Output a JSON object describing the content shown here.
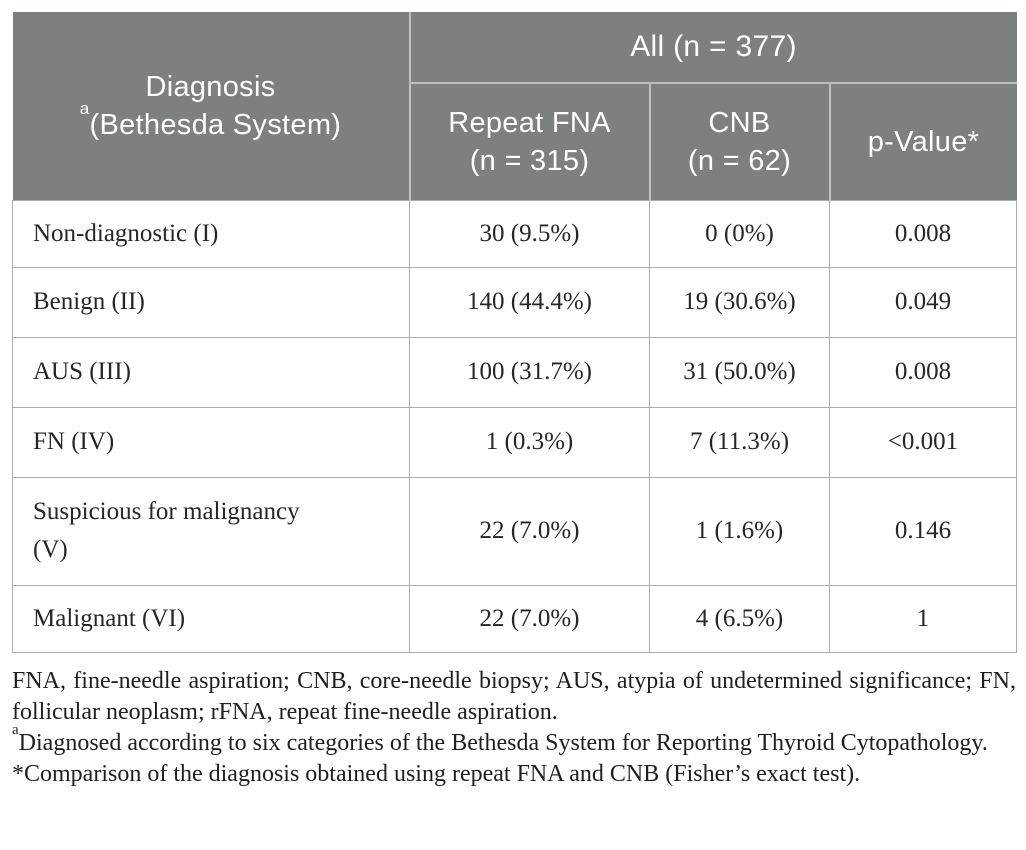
{
  "table": {
    "header": {
      "diagnosis_title": "Diagnosis",
      "diagnosis_sup": "a",
      "diagnosis_subtitle": "(Bethesda System)",
      "all_label": "All (n = 377)",
      "col_repeat_fna_line1": "Repeat FNA",
      "col_repeat_fna_line2": "(n = 315)",
      "col_cnb_line1": "CNB",
      "col_cnb_line2": "(n = 62)",
      "col_p_value": "p-Value*"
    },
    "rows": [
      {
        "label": "Non-diagnostic (I)",
        "repeat_fna": "30 (9.5%)",
        "cnb": "0 (0%)",
        "p_value": "0.008"
      },
      {
        "label": "Benign (II)",
        "repeat_fna": "140 (44.4%)",
        "cnb": "19 (30.6%)",
        "p_value": "0.049"
      },
      {
        "label": "AUS (III)",
        "repeat_fna": "100 (31.7%)",
        "cnb": "31 (50.0%)",
        "p_value": "0.008"
      },
      {
        "label": "FN (IV)",
        "repeat_fna": "1 (0.3%)",
        "cnb": "7 (11.3%)",
        "p_value": "<0.001"
      },
      {
        "label": "Suspicious for malignancy (V)",
        "repeat_fna": "22 (7.0%)",
        "cnb": "1 (1.6%)",
        "p_value": "0.146"
      },
      {
        "label": "Malignant (VI)",
        "repeat_fna": "22 (7.0%)",
        "cnb": "4 (6.5%)",
        "p_value": "1"
      }
    ]
  },
  "footnotes": {
    "abbreviations": "FNA, fine-needle aspiration; CNB, core-needle biopsy; AUS, atypia of undetermined significance; FN, follicular neoplasm; rFNA, repeat fine-needle aspiration.",
    "note_a_sup": "a",
    "note_a": "Diagnosed according to six categories of the Bethesda System for Reporting Thyroid Cytopathology.",
    "note_star": "*Comparison of the diagnosis obtained using repeat FNA and CNB (Fisher’s exact test)."
  },
  "colors": {
    "header_background": "#7d8080",
    "header_text": "#ffffff",
    "header_divider": "#bcbfbf",
    "body_border": "#abaeae",
    "body_text": "#262626"
  }
}
